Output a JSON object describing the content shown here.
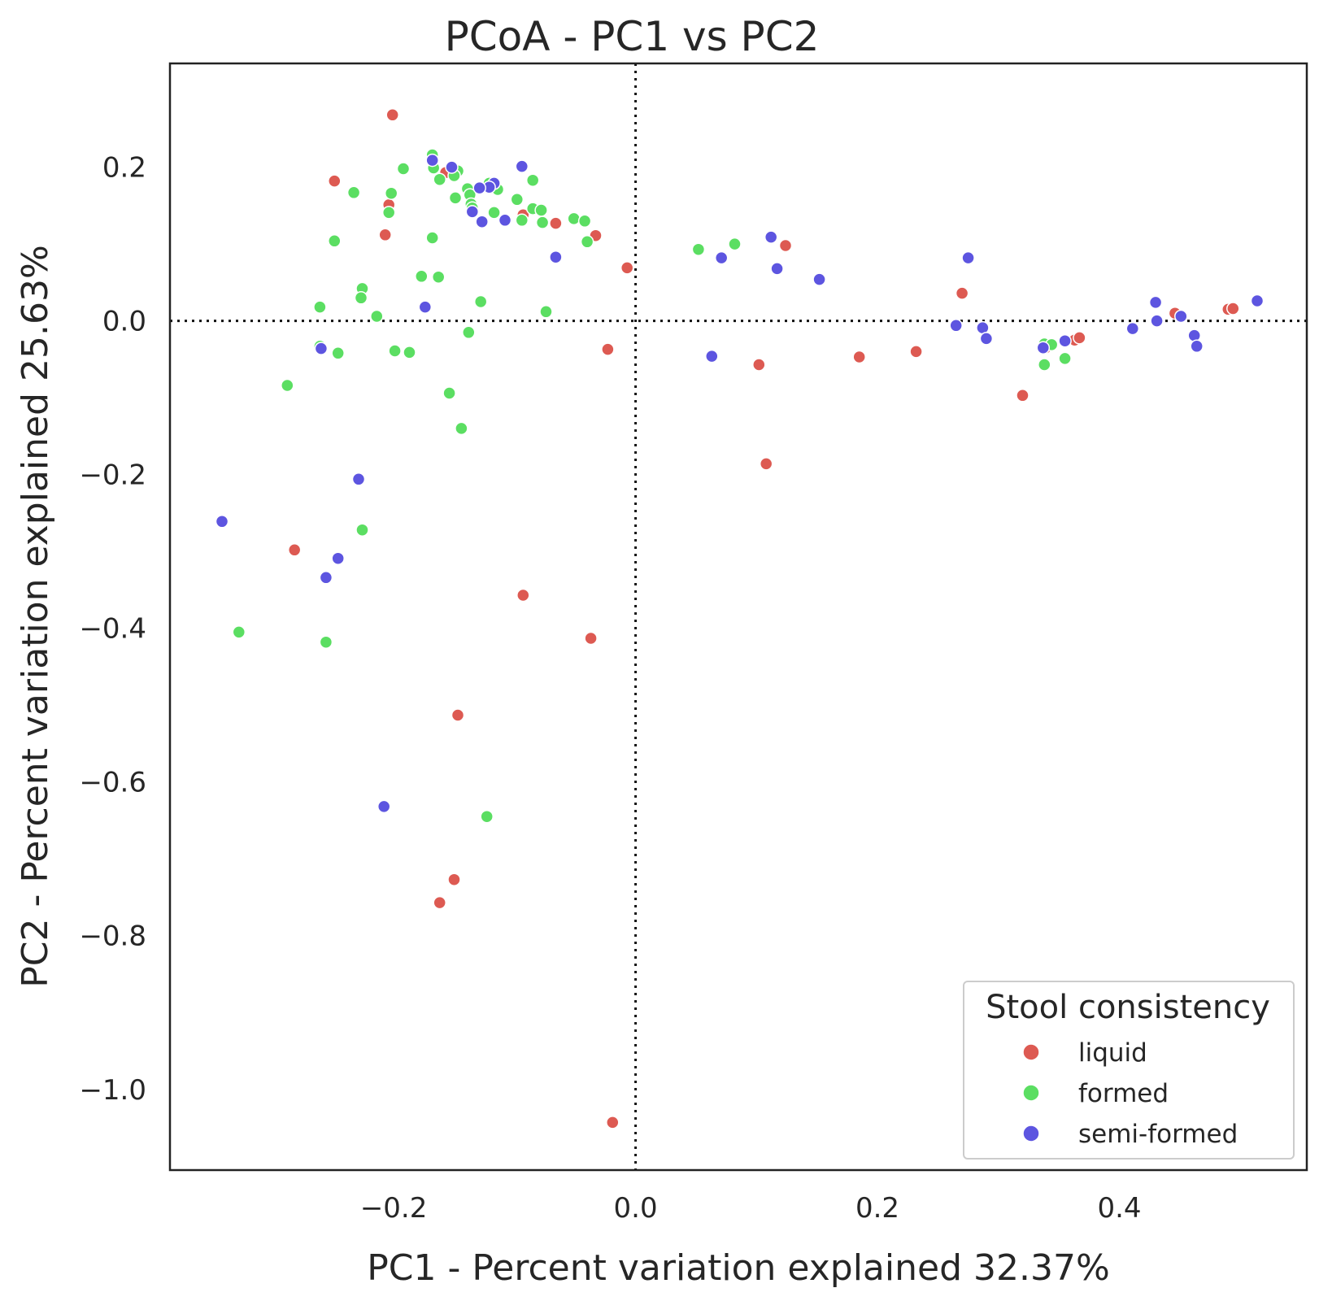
{
  "chart_data": {
    "type": "scatter",
    "title": "PCoA - PC1 vs PC2",
    "xlabel": "PC1 - Percent variation explained 32.37%",
    "ylabel": "PC2 - Percent variation explained 25.63%",
    "xlim": [
      -0.385,
      0.555
    ],
    "ylim": [
      -1.105,
      0.335
    ],
    "xticks": [
      -0.2,
      0.0,
      0.2,
      0.4
    ],
    "yticks": [
      0.2,
      0.0,
      -0.2,
      -0.4,
      -0.6,
      -0.8,
      -1.0
    ],
    "xtick_labels": [
      "−0.2",
      "0.0",
      "0.2",
      "0.4"
    ],
    "ytick_labels": [
      "0.2",
      "0.0",
      "−0.2",
      "−0.4",
      "−0.6",
      "−0.8",
      "−1.0"
    ],
    "reference_lines": {
      "x": 0.0,
      "y": 0.0,
      "style": "dotted"
    },
    "grid": false,
    "legend": {
      "title": "Stool consistency",
      "placement": "lower-right"
    },
    "series": [
      {
        "name": "liquid",
        "color": "#dd5a52",
        "points": [
          [
            -0.201,
            0.268
          ],
          [
            -0.249,
            0.182
          ],
          [
            -0.204,
            0.151
          ],
          [
            -0.207,
            0.112
          ],
          [
            -0.157,
            0.193
          ],
          [
            -0.093,
            0.138
          ],
          [
            -0.066,
            0.127
          ],
          [
            -0.033,
            0.111
          ],
          [
            -0.007,
            0.069
          ],
          [
            -0.023,
            -0.037
          ],
          [
            -0.282,
            -0.298
          ],
          [
            -0.093,
            -0.357
          ],
          [
            -0.037,
            -0.413
          ],
          [
            -0.147,
            -0.513
          ],
          [
            -0.15,
            -0.727
          ],
          [
            -0.162,
            -0.757
          ],
          [
            -0.019,
            -1.043
          ],
          [
            0.102,
            -0.057
          ],
          [
            0.108,
            -0.186
          ],
          [
            0.124,
            0.098
          ],
          [
            0.185,
            -0.047
          ],
          [
            0.232,
            -0.04
          ],
          [
            0.27,
            0.036
          ],
          [
            0.32,
            -0.097
          ],
          [
            0.338,
            -0.03
          ],
          [
            0.339,
            -0.035
          ],
          [
            0.363,
            -0.025
          ],
          [
            0.367,
            -0.022
          ],
          [
            0.446,
            0.01
          ],
          [
            0.49,
            0.015
          ],
          [
            0.494,
            0.016
          ]
        ]
      },
      {
        "name": "formed",
        "color": "#5bde62",
        "points": [
          [
            -0.168,
            0.216
          ],
          [
            -0.167,
            0.199
          ],
          [
            -0.192,
            0.198
          ],
          [
            -0.147,
            0.195
          ],
          [
            -0.15,
            0.189
          ],
          [
            -0.162,
            0.184
          ],
          [
            -0.085,
            0.183
          ],
          [
            -0.121,
            0.179
          ],
          [
            -0.139,
            0.172
          ],
          [
            -0.114,
            0.171
          ],
          [
            -0.233,
            0.167
          ],
          [
            -0.202,
            0.166
          ],
          [
            -0.149,
            0.16
          ],
          [
            -0.137,
            0.164
          ],
          [
            -0.098,
            0.158
          ],
          [
            -0.136,
            0.152
          ],
          [
            -0.085,
            0.146
          ],
          [
            -0.078,
            0.144
          ],
          [
            -0.117,
            0.141
          ],
          [
            -0.204,
            0.141
          ],
          [
            -0.135,
            0.147
          ],
          [
            -0.094,
            0.131
          ],
          [
            -0.077,
            0.128
          ],
          [
            -0.051,
            0.133
          ],
          [
            -0.042,
            0.13
          ],
          [
            -0.249,
            0.104
          ],
          [
            -0.168,
            0.108
          ],
          [
            -0.04,
            0.103
          ],
          [
            0.052,
            0.093
          ],
          [
            0.082,
            0.1
          ],
          [
            -0.177,
            0.058
          ],
          [
            -0.163,
            0.057
          ],
          [
            -0.226,
            0.042
          ],
          [
            -0.227,
            0.03
          ],
          [
            -0.128,
            0.025
          ],
          [
            -0.261,
            0.018
          ],
          [
            -0.074,
            0.012
          ],
          [
            -0.214,
            0.006
          ],
          [
            -0.138,
            -0.015
          ],
          [
            -0.261,
            -0.033
          ],
          [
            -0.199,
            -0.039
          ],
          [
            -0.187,
            -0.041
          ],
          [
            -0.246,
            -0.042
          ],
          [
            -0.288,
            -0.084
          ],
          [
            -0.154,
            -0.094
          ],
          [
            -0.144,
            -0.14
          ],
          [
            -0.226,
            -0.272
          ],
          [
            -0.328,
            -0.405
          ],
          [
            -0.256,
            -0.418
          ],
          [
            -0.123,
            -0.645
          ],
          [
            0.338,
            -0.03
          ],
          [
            0.344,
            -0.031
          ],
          [
            0.338,
            -0.057
          ],
          [
            0.355,
            -0.049
          ]
        ]
      },
      {
        "name": "semi-formed",
        "color": "#5d55e0",
        "points": [
          [
            -0.168,
            0.209
          ],
          [
            -0.152,
            0.2
          ],
          [
            -0.094,
            0.201
          ],
          [
            -0.117,
            0.179
          ],
          [
            -0.121,
            0.174
          ],
          [
            -0.129,
            0.173
          ],
          [
            -0.135,
            0.142
          ],
          [
            -0.127,
            0.129
          ],
          [
            -0.108,
            0.131
          ],
          [
            -0.066,
            0.083
          ],
          [
            -0.174,
            0.018
          ],
          [
            -0.26,
            -0.036
          ],
          [
            -0.229,
            -0.206
          ],
          [
            -0.342,
            -0.261
          ],
          [
            -0.246,
            -0.309
          ],
          [
            -0.256,
            -0.334
          ],
          [
            -0.208,
            -0.632
          ],
          [
            0.063,
            -0.046
          ],
          [
            0.071,
            0.082
          ],
          [
            0.112,
            0.109
          ],
          [
            0.117,
            0.068
          ],
          [
            0.152,
            0.054
          ],
          [
            0.275,
            0.082
          ],
          [
            0.265,
            -0.006
          ],
          [
            0.287,
            -0.009
          ],
          [
            0.29,
            -0.023
          ],
          [
            0.337,
            -0.035
          ],
          [
            0.355,
            -0.026
          ],
          [
            0.411,
            -0.01
          ],
          [
            0.43,
            0.024
          ],
          [
            0.431,
            0.0
          ],
          [
            0.451,
            0.006
          ],
          [
            0.462,
            -0.019
          ],
          [
            0.464,
            -0.033
          ],
          [
            0.514,
            0.026
          ]
        ]
      }
    ]
  }
}
